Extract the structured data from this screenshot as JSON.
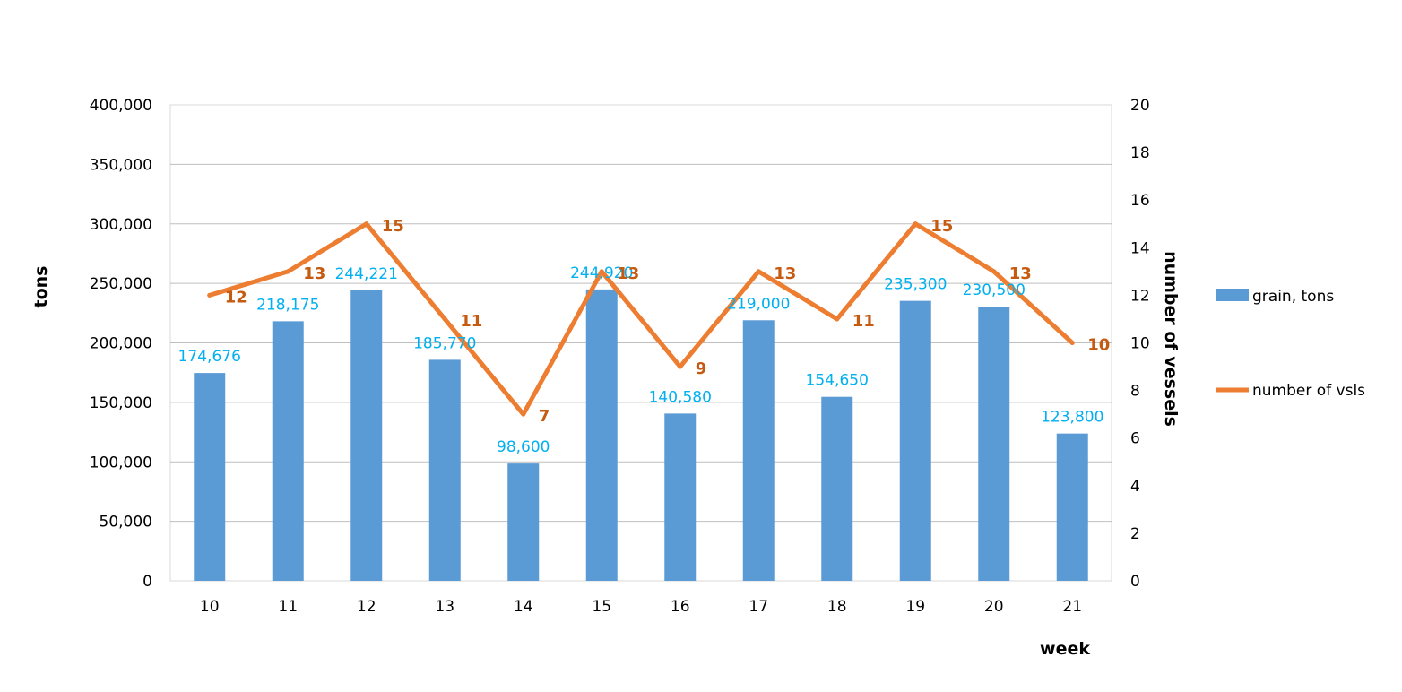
{
  "chart_data": {
    "type": "bar",
    "categories": [
      "10",
      "11",
      "12",
      "13",
      "14",
      "15",
      "16",
      "17",
      "18",
      "19",
      "20",
      "21"
    ],
    "series": [
      {
        "name": "grain, tons",
        "type": "bar",
        "axis": "left",
        "color": "#5B9BD5",
        "label_color": "#00B0F0",
        "values": [
          174676,
          218175,
          244221,
          185770,
          98600,
          244920,
          140580,
          219000,
          154650,
          235300,
          230500,
          123800
        ],
        "labels": [
          "174,676",
          "218,175",
          "244,221",
          "185,770",
          "98,600",
          "244,920",
          "140,580",
          "219,000",
          "154,650",
          "235,300",
          "230,500",
          "123,800"
        ]
      },
      {
        "name": "number of vsls",
        "type": "line",
        "axis": "right",
        "color": "#ED7D31",
        "label_color": "#C55A11",
        "values": [
          12,
          13,
          15,
          11,
          7,
          13,
          9,
          13,
          11,
          15,
          13,
          10
        ],
        "labels": [
          "12",
          "13",
          "15",
          "11",
          "7",
          "13",
          "9",
          "13",
          "11",
          "15",
          "13",
          "10"
        ]
      }
    ],
    "xlabel": "week",
    "ylabel": "tons",
    "y2label": "number of vessels",
    "ylim": [
      0,
      400000
    ],
    "y2lim": [
      0,
      20
    ],
    "yticks": [
      "0",
      "50,000",
      "100,000",
      "150,000",
      "200,000",
      "250,000",
      "300,000",
      "350,000",
      "400,000"
    ],
    "y2ticks": [
      "0",
      "2",
      "4",
      "6",
      "8",
      "10",
      "12",
      "14",
      "16",
      "18",
      "20"
    ],
    "grid": true,
    "legend_position": "right"
  }
}
